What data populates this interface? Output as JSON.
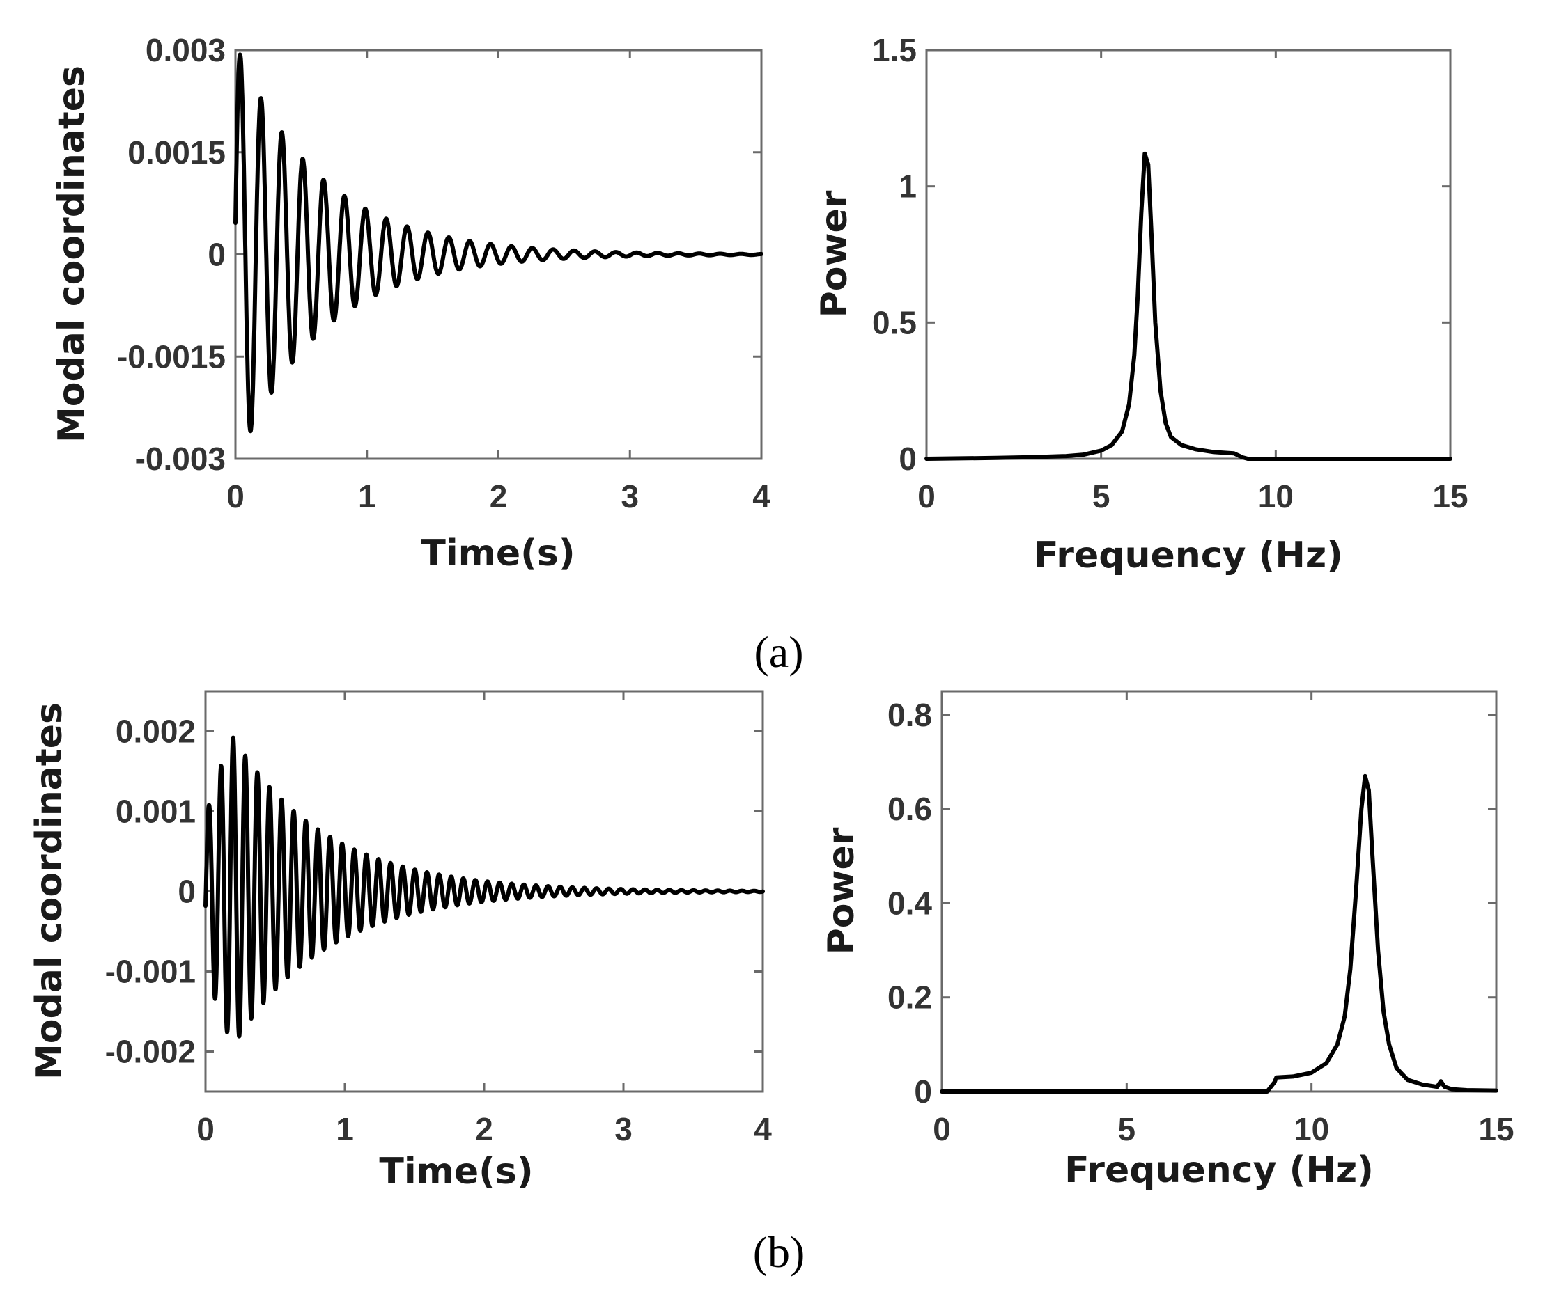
{
  "chart_data": [
    {
      "type": "line",
      "title": "",
      "xlabel": "Time(s)",
      "ylabel": "Modal coordinates",
      "xlim": [
        0,
        4
      ],
      "ylim": [
        -0.003,
        0.003
      ],
      "xticks": [
        "0",
        "1",
        "2",
        "3",
        "4"
      ],
      "yticks": [
        "0.003",
        "0.0015",
        "0",
        "-0.0015",
        "-0.003"
      ],
      "series": [
        {
          "name": "modal response",
          "model": "damped_sine",
          "amplitude": 0.0031,
          "frequency_hz": 6.3,
          "decay_per_s": 1.55,
          "phase_rad": 0.15,
          "duration_s": 4
        }
      ]
    },
    {
      "type": "line",
      "title": "",
      "xlabel": "Frequency (Hz)",
      "ylabel": "Power",
      "xlim": [
        0,
        15
      ],
      "ylim": [
        0,
        1.5
      ],
      "xticks": [
        "0",
        "5",
        "10",
        "15"
      ],
      "yticks": [
        "1.5",
        "1",
        "0.5",
        "0"
      ],
      "series": [
        {
          "name": "power spectrum",
          "x": [
            0,
            2,
            3,
            4,
            4.5,
            5,
            5.3,
            5.6,
            5.8,
            5.95,
            6.05,
            6.15,
            6.25,
            6.35,
            6.45,
            6.55,
            6.7,
            6.85,
            7,
            7.3,
            7.7,
            8.2,
            8.8,
            9.05,
            9.2,
            10,
            12,
            15
          ],
          "y": [
            0,
            0.003,
            0.006,
            0.01,
            0.015,
            0.03,
            0.05,
            0.1,
            0.2,
            0.38,
            0.6,
            0.9,
            1.12,
            1.08,
            0.8,
            0.5,
            0.25,
            0.13,
            0.08,
            0.05,
            0.035,
            0.025,
            0.02,
            0.005,
            0,
            0,
            0,
            0
          ]
        }
      ]
    },
    {
      "type": "line",
      "title": "",
      "xlabel": "Time(s)",
      "ylabel": "Modal coordinates",
      "xlim": [
        0,
        4
      ],
      "ylim": [
        -0.0025,
        0.0025
      ],
      "xticks": [
        "0",
        "1",
        "2",
        "3",
        "4"
      ],
      "yticks": [
        "0.002",
        "0.001",
        "0",
        "-0.001",
        "-0.002"
      ],
      "series": [
        {
          "name": "modal response",
          "model": "damped_sine",
          "amplitude": 0.0026,
          "frequency_hz": 11.5,
          "decay_per_s": 1.5,
          "phase_rad": -0.2,
          "rise_s": 0.2,
          "duration_s": 4
        }
      ]
    },
    {
      "type": "line",
      "title": "",
      "xlabel": "Frequency (Hz)",
      "ylabel": "Power",
      "xlim": [
        0,
        15
      ],
      "ylim": [
        0,
        0.85
      ],
      "xticks": [
        "0",
        "5",
        "10",
        "15"
      ],
      "yticks": [
        "0.8",
        "0.6",
        "0.4",
        "0.2",
        "0"
      ],
      "series": [
        {
          "name": "power spectrum",
          "x": [
            0,
            8.8,
            9,
            9.05,
            9.5,
            10,
            10.4,
            10.7,
            10.9,
            11.05,
            11.2,
            11.35,
            11.45,
            11.55,
            11.65,
            11.8,
            11.95,
            12.1,
            12.3,
            12.6,
            13,
            13.4,
            13.5,
            13.6,
            13.8,
            14.2,
            15
          ],
          "y": [
            0,
            0,
            0.02,
            0.03,
            0.032,
            0.04,
            0.06,
            0.1,
            0.16,
            0.26,
            0.42,
            0.6,
            0.67,
            0.64,
            0.5,
            0.3,
            0.17,
            0.1,
            0.05,
            0.025,
            0.015,
            0.01,
            0.022,
            0.01,
            0.005,
            0.003,
            0.002
          ]
        }
      ]
    }
  ],
  "panels": [
    {
      "label": "(a)"
    },
    {
      "label": "(b)"
    }
  ]
}
